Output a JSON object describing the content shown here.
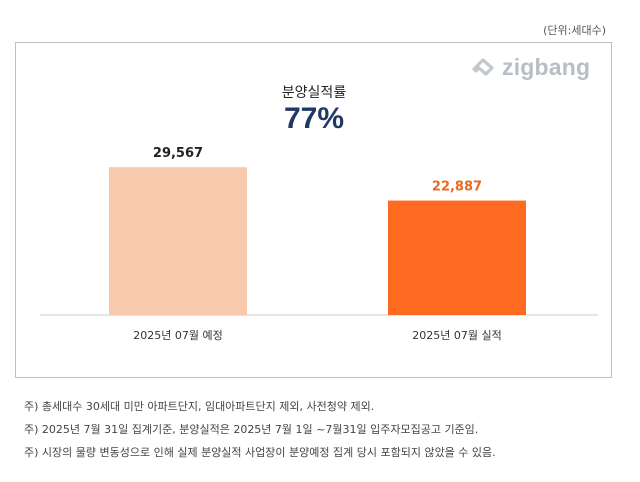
{
  "unit_label": "(단위:세대수)",
  "logo": {
    "text": "zigbang",
    "color": "#b8bec6"
  },
  "chart_data": {
    "type": "bar",
    "title": "분양실적률",
    "rate": "77%",
    "categories": [
      "2025년 07월 예정",
      "2025년 07월 실적"
    ],
    "values": [
      29567,
      22887
    ],
    "value_labels": [
      "29,567",
      "22,887"
    ],
    "colors": [
      "#f9c9ad",
      "#ff6a21"
    ],
    "value_label_colors": [
      "#222222",
      "#e8691f"
    ],
    "ylim": [
      0,
      36000
    ],
    "grid": false,
    "legend": "none"
  },
  "notes": [
    "주) 총세대수 30세대 미만 아파트단지, 임대아파트단지 제외, 사전청약 제외.",
    "주) 2025년 7월 31일 집계기준, 분양실적은 2025년 7월 1일 ~7월31일 입주자모집공고 기준임.",
    "주) 시장의 물량 변동성으로 인해 실제 분양실적 사업장이 분양예정 집계 당시 포함되지 않았을 수 있음."
  ]
}
